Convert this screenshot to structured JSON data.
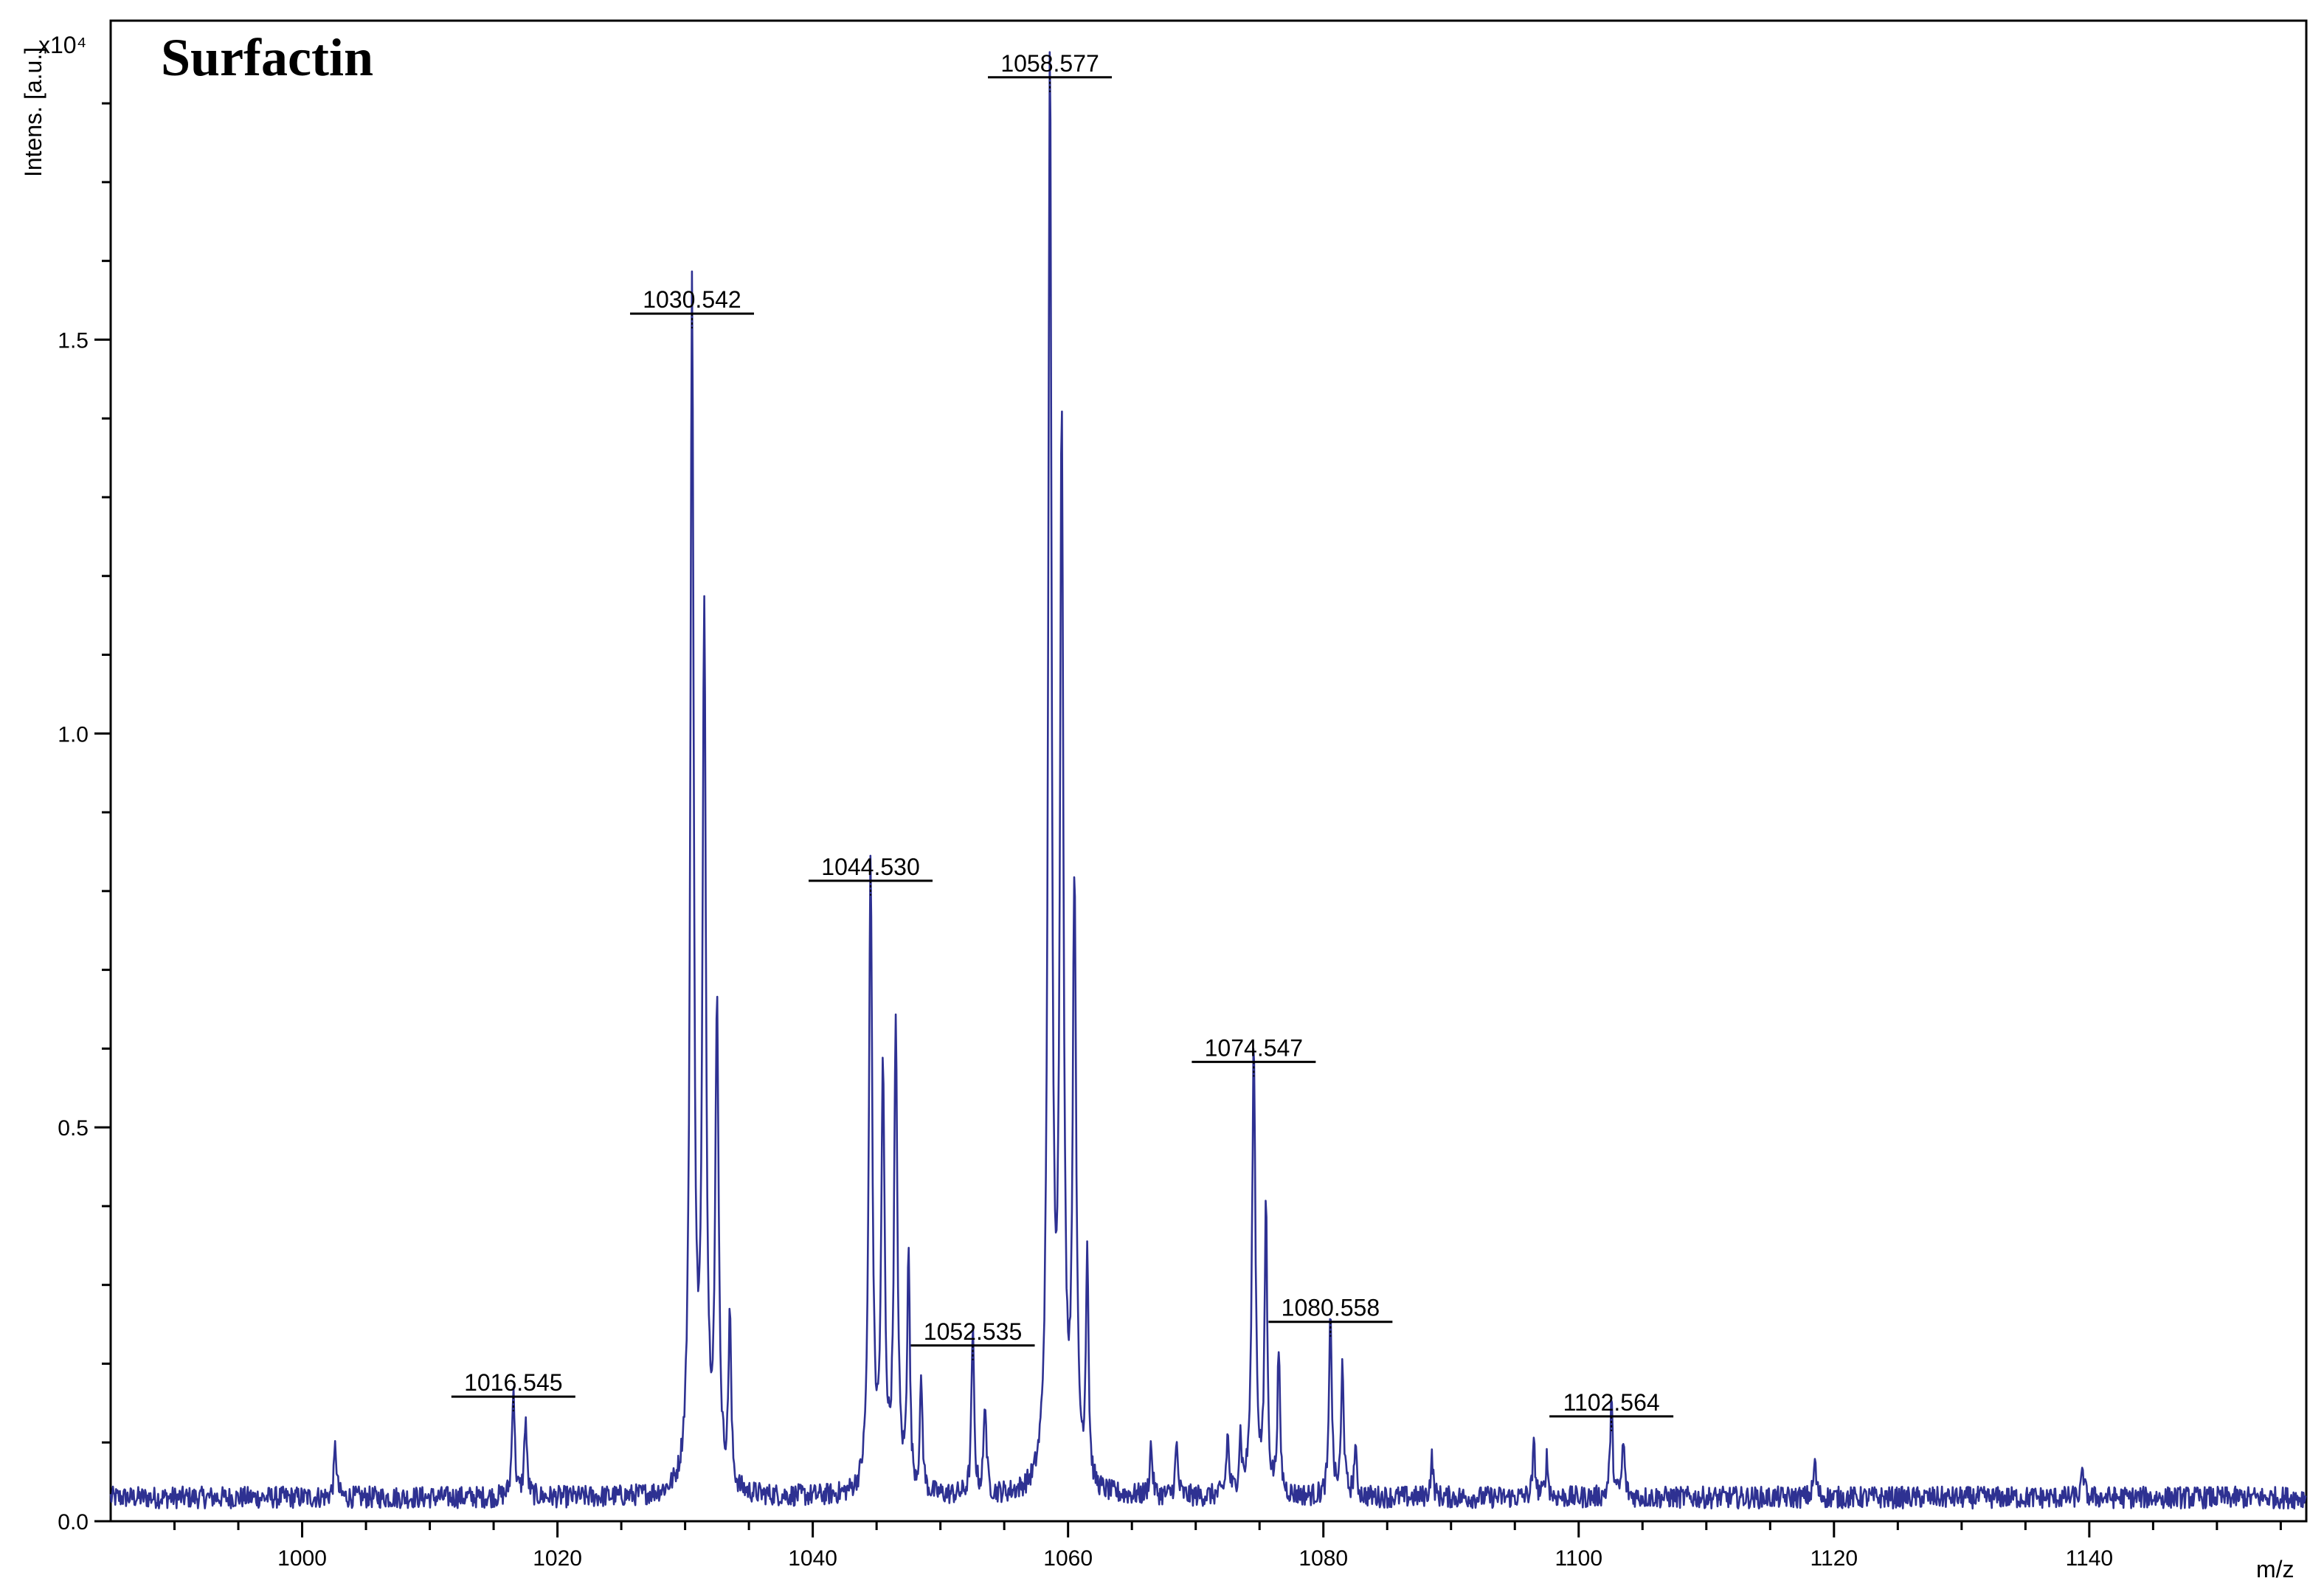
{
  "chart_data": {
    "type": "line",
    "title": "Surfactin",
    "xlabel": "m/z",
    "ylabel": "Intens. [a.u.]",
    "y_multiplier": "x10⁴",
    "xlim": [
      985,
      1157
    ],
    "ylim": [
      0,
      1.905
    ],
    "x_ticks": [
      1000,
      1020,
      1040,
      1060,
      1080,
      1100,
      1120,
      1140
    ],
    "x_tick_labels": [
      "1000",
      "1020",
      "1040",
      "1060",
      "1080",
      "1100",
      "1120",
      "1140"
    ],
    "y_ticks": [
      0,
      0.5,
      1.0,
      1.5
    ],
    "y_tick_labels": [
      "0.0",
      "0.5",
      "1.0",
      "1.5"
    ],
    "grid": false,
    "line_color": "#2e3192",
    "series": [
      {
        "peaks": [
          {
            "x": 1002.6,
            "y": 0.065
          },
          {
            "x": 1016.545,
            "y": 0.145
          },
          {
            "x": 1017.5,
            "y": 0.1
          },
          {
            "x": 1030.542,
            "y": 1.52
          },
          {
            "x": 1031.5,
            "y": 1.1
          },
          {
            "x": 1032.5,
            "y": 0.6
          },
          {
            "x": 1033.5,
            "y": 0.22
          },
          {
            "x": 1044.53,
            "y": 0.8
          },
          {
            "x": 1045.5,
            "y": 0.52
          },
          {
            "x": 1046.5,
            "y": 0.58
          },
          {
            "x": 1047.5,
            "y": 0.31
          },
          {
            "x": 1048.5,
            "y": 0.14
          },
          {
            "x": 1052.535,
            "y": 0.21
          },
          {
            "x": 1053.5,
            "y": 0.12
          },
          {
            "x": 1058.577,
            "y": 1.82
          },
          {
            "x": 1059.5,
            "y": 1.34
          },
          {
            "x": 1060.5,
            "y": 0.76
          },
          {
            "x": 1061.5,
            "y": 0.3
          },
          {
            "x": 1066.5,
            "y": 0.065
          },
          {
            "x": 1068.5,
            "y": 0.065
          },
          {
            "x": 1072.5,
            "y": 0.075
          },
          {
            "x": 1073.5,
            "y": 0.07
          },
          {
            "x": 1074.547,
            "y": 0.57
          },
          {
            "x": 1075.5,
            "y": 0.37
          },
          {
            "x": 1076.5,
            "y": 0.18
          },
          {
            "x": 1080.558,
            "y": 0.24
          },
          {
            "x": 1081.5,
            "y": 0.17
          },
          {
            "x": 1082.5,
            "y": 0.06
          },
          {
            "x": 1088.5,
            "y": 0.05
          },
          {
            "x": 1096.5,
            "y": 0.065
          },
          {
            "x": 1097.5,
            "y": 0.05
          },
          {
            "x": 1102.564,
            "y": 0.12
          },
          {
            "x": 1103.5,
            "y": 0.07
          },
          {
            "x": 1118.5,
            "y": 0.045
          },
          {
            "x": 1139.5,
            "y": 0.035
          }
        ]
      }
    ],
    "annotations": [
      {
        "text": "1016.545",
        "x": 1016.545,
        "y": 0.145
      },
      {
        "text": "1030.542",
        "x": 1030.542,
        "y": 1.52
      },
      {
        "text": "1044.530",
        "x": 1044.53,
        "y": 0.8
      },
      {
        "text": "1052.535",
        "x": 1052.535,
        "y": 0.21
      },
      {
        "text": "1058.577",
        "x": 1058.577,
        "y": 1.82
      },
      {
        "text": "1074.547",
        "x": 1074.547,
        "y": 0.57
      },
      {
        "text": "1080.558",
        "x": 1080.558,
        "y": 0.24
      },
      {
        "text": "1102.564",
        "x": 1102.564,
        "y": 0.12
      }
    ],
    "baseline": 0.03
  }
}
